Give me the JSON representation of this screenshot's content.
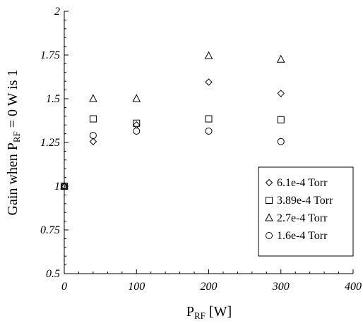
{
  "chart_data": {
    "type": "scatter",
    "xlabel": {
      "main": "P",
      "sub": "RF",
      "rest": " [W]"
    },
    "ylabel": {
      "pre": "Gain when P",
      "sub": "RF",
      "post": " = 0 W is 1"
    },
    "xlim": [
      0,
      400
    ],
    "ylim": [
      0.5,
      2
    ],
    "xticks": [
      0,
      100,
      200,
      300,
      400
    ],
    "xtick_labels": [
      "0",
      "100",
      "200",
      "300",
      "400"
    ],
    "yticks": [
      0.5,
      0.75,
      1,
      1.25,
      1.5,
      1.75,
      2
    ],
    "ytick_labels": [
      "0.5",
      "0.75",
      "1",
      "1.25",
      "1.5",
      "1.75",
      "2"
    ],
    "grid": false,
    "legend_position": "bottom-right",
    "series": [
      {
        "name": "6.1e-4 Torr",
        "marker": "diamond",
        "x": [
          0,
          40,
          100,
          200,
          300
        ],
        "y": [
          1.0,
          1.255,
          1.35,
          1.595,
          1.53
        ]
      },
      {
        "name": "3.89e-4 Torr",
        "marker": "square",
        "x": [
          0,
          40,
          100,
          200,
          300
        ],
        "y": [
          1.0,
          1.385,
          1.36,
          1.385,
          1.38
        ]
      },
      {
        "name": "2.7e-4 Torr",
        "marker": "triangle",
        "x": [
          0,
          40,
          100,
          200,
          300
        ],
        "y": [
          1.0,
          1.5,
          1.5,
          1.745,
          1.725
        ]
      },
      {
        "name": "1.6e-4 Torr",
        "marker": "circle",
        "x": [
          0,
          40,
          100,
          200,
          300
        ],
        "y": [
          1.0,
          1.29,
          1.315,
          1.315,
          1.255
        ]
      }
    ]
  }
}
